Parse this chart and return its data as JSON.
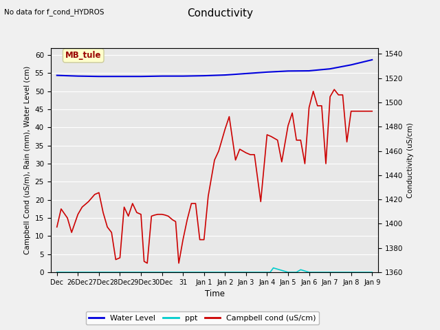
{
  "title": "Conductivity",
  "subtitle": "No data for f_cond_HYDROS",
  "xlabel": "Time",
  "ylabel_left": "Campbell Cond (uS/m), Rain (mm), Water Level (cm)",
  "ylabel_right": "Conductivity (uS/cm)",
  "ylim_left": [
    0,
    62
  ],
  "ylim_right": [
    1360,
    1545
  ],
  "fig_bg_color": "#f0f0f0",
  "plot_bg_color": "#e8e8e8",
  "annotation_text": "MB_tule",
  "annotation_fg": "#990000",
  "annotation_bg": "#ffffcc",
  "annotation_edge": "#cccc99",
  "xtick_labels": [
    "Dec",
    "26Dec",
    "27Dec",
    "28Dec",
    "29Dec",
    "30Dec",
    "31",
    "Jan 1",
    "Jan 2",
    "Jan 3",
    "Jan 4",
    "Jan 5",
    "Jan 6",
    "Jan 7",
    "Jan 8",
    "Jan 9"
  ],
  "xtick_positions": [
    0,
    1,
    2,
    3,
    4,
    5,
    6,
    7,
    8,
    9,
    10,
    11,
    12,
    13,
    14,
    15
  ],
  "ytick_left": [
    0,
    5,
    10,
    15,
    20,
    25,
    30,
    35,
    40,
    45,
    50,
    55,
    60
  ],
  "ytick_right": [
    1360,
    1380,
    1400,
    1420,
    1440,
    1460,
    1480,
    1500,
    1520,
    1540
  ],
  "water_level_color": "#0000dd",
  "ppt_color": "#00cccc",
  "campbell_color": "#cc0000",
  "water_level_x": [
    0,
    1,
    2,
    3,
    4,
    5,
    6,
    7,
    8,
    9,
    10,
    11,
    12,
    13,
    14,
    15
  ],
  "water_level_y": [
    54.4,
    54.2,
    54.1,
    54.1,
    54.1,
    54.2,
    54.2,
    54.3,
    54.5,
    54.9,
    55.3,
    55.6,
    55.65,
    56.2,
    57.3,
    58.7
  ],
  "ppt_x": [
    0,
    1,
    2,
    3,
    4,
    5,
    6,
    7,
    8,
    9,
    10,
    10.15,
    10.3,
    11,
    11.4,
    11.6,
    12,
    13,
    14,
    15
  ],
  "ppt_y": [
    0,
    0,
    0,
    0,
    0,
    0,
    0,
    0,
    0,
    0,
    0,
    0,
    1.2,
    0,
    0,
    0.7,
    0,
    0,
    0,
    0
  ],
  "campbell_x": [
    0,
    0.2,
    0.5,
    0.7,
    1.0,
    1.2,
    1.5,
    1.8,
    2.0,
    2.2,
    2.4,
    2.6,
    2.8,
    3.0,
    3.2,
    3.4,
    3.6,
    3.8,
    4.0,
    4.15,
    4.3,
    4.5,
    4.65,
    4.8,
    5.0,
    5.15,
    5.3,
    5.5,
    5.65,
    5.8,
    6.0,
    6.2,
    6.4,
    6.6,
    6.8,
    7.0,
    7.2,
    7.5,
    7.7,
    8.0,
    8.2,
    8.5,
    8.7,
    9.0,
    9.2,
    9.4,
    9.7,
    10.0,
    10.2,
    10.5,
    10.7,
    11.0,
    11.2,
    11.4,
    11.6,
    11.8,
    12.0,
    12.2,
    12.4,
    12.6,
    12.8,
    13.0,
    13.2,
    13.4,
    13.6,
    13.8,
    14.0,
    14.2,
    14.5,
    14.7,
    15.0
  ],
  "campbell_y": [
    12.5,
    17.5,
    15.0,
    11.0,
    16.0,
    18.0,
    19.5,
    21.5,
    22.0,
    16.5,
    12.5,
    11.0,
    3.5,
    4.0,
    18.0,
    15.5,
    19.0,
    16.5,
    16.0,
    3.0,
    2.5,
    15.5,
    15.8,
    16.0,
    16.0,
    15.8,
    15.5,
    14.5,
    14.0,
    2.5,
    9.0,
    14.5,
    19.0,
    19.0,
    9.0,
    9.0,
    21.0,
    31.0,
    33.5,
    39.5,
    43.0,
    31.0,
    34.0,
    33.0,
    32.5,
    32.5,
    19.5,
    38.0,
    37.5,
    36.5,
    30.5,
    40.5,
    44.0,
    36.5,
    36.5,
    30.0,
    45.5,
    50.0,
    46.0,
    46.0,
    30.0,
    48.5,
    50.5,
    49.0,
    49.0,
    36.0,
    44.5,
    44.5,
    44.5,
    44.5,
    44.5
  ]
}
